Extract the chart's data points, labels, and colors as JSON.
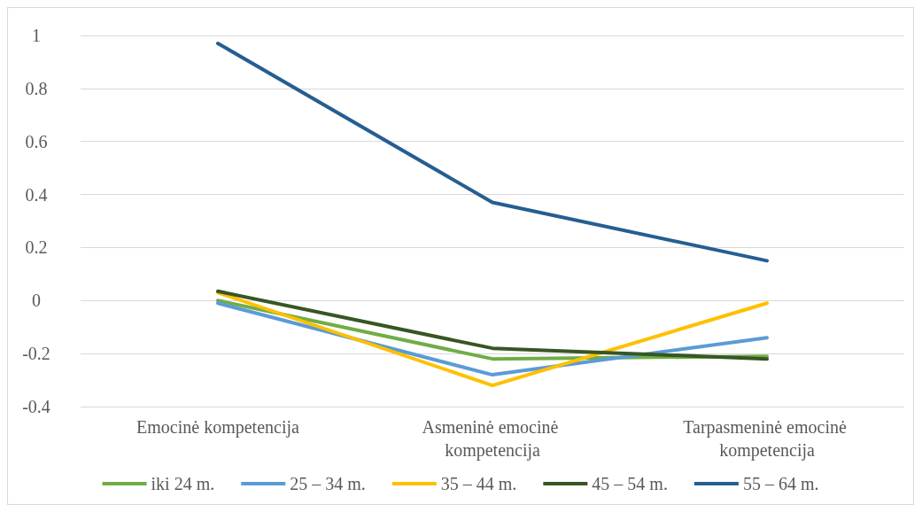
{
  "chart_data": {
    "type": "line",
    "categories": [
      "Emocinė kompetencija",
      "Asmeninė emocinė kompetencija",
      "Tarpasmeninė emocinė kompetencija"
    ],
    "series": [
      {
        "name": "iki 24 m.",
        "color": "#70ad47",
        "values": [
          0,
          -0.22,
          -0.21
        ]
      },
      {
        "name": "25 – 34 m.",
        "color": "#5b9bd5",
        "values": [
          -0.01,
          -0.28,
          -0.14
        ]
      },
      {
        "name": "35 – 44 m.",
        "color": "#ffc000",
        "values": [
          0.03,
          -0.32,
          -0.01
        ]
      },
      {
        "name": "45 – 54 m.",
        "color": "#375623",
        "values": [
          0.035,
          -0.18,
          -0.22
        ]
      },
      {
        "name": "55 – 64 m.",
        "color": "#255e91",
        "values": [
          0.97,
          0.37,
          0.15
        ]
      }
    ],
    "ylim": [
      -0.4,
      1
    ],
    "yticks": [
      -0.4,
      -0.2,
      0,
      0.2,
      0.4,
      0.6,
      0.8,
      1
    ],
    "grid": "y",
    "legend": "bottom",
    "marker": "none",
    "line_style": "solid"
  }
}
